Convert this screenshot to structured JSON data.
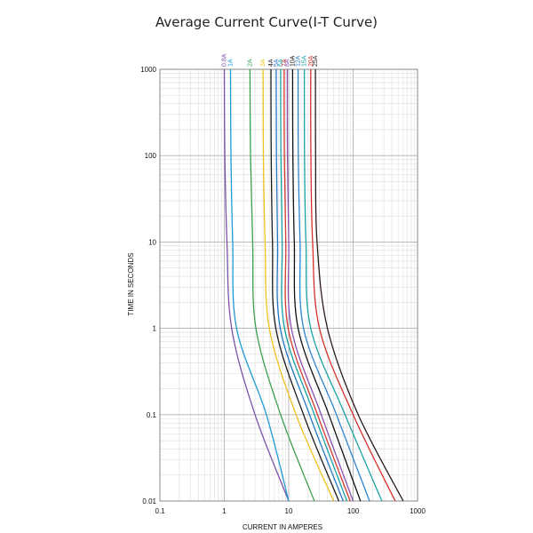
{
  "chart_data": {
    "type": "line",
    "title": "Average Current Curve(I-T Curve)",
    "xlabel": "CURRENT IN AMPERES",
    "ylabel": "TIME IN SECONDS",
    "x_scale": "log",
    "y_scale": "log",
    "xlim": [
      0.1,
      1000
    ],
    "ylim": [
      0.01,
      1000
    ],
    "x_ticks": [
      "0.1",
      "1",
      "10",
      "100",
      "1000"
    ],
    "y_ticks": [
      "0.01",
      "0.1",
      "1",
      "10",
      "100",
      "1000"
    ],
    "grid": true,
    "legend": "top, rotated labels above each curve",
    "series": [
      {
        "name": "0.8A",
        "color": "#7b52a8",
        "points": [
          [
            1.0,
            1000
          ],
          [
            1.02,
            100
          ],
          [
            1.1,
            10
          ],
          [
            1.3,
            1
          ],
          [
            3.0,
            0.1
          ],
          [
            10.0,
            0.01
          ]
        ]
      },
      {
        "name": "1A",
        "color": "#1f9ad6",
        "points": [
          [
            1.25,
            1000
          ],
          [
            1.27,
            100
          ],
          [
            1.35,
            10
          ],
          [
            1.55,
            1
          ],
          [
            4.5,
            0.1
          ],
          [
            10.0,
            0.01
          ]
        ]
      },
      {
        "name": "2A",
        "color": "#3aa050",
        "points": [
          [
            2.5,
            1000
          ],
          [
            2.55,
            100
          ],
          [
            2.75,
            10
          ],
          [
            3.1,
            1
          ],
          [
            7.5,
            0.1
          ],
          [
            25.0,
            0.01
          ]
        ]
      },
      {
        "name": "3A",
        "color": "#f0c21c",
        "points": [
          [
            4.0,
            1000
          ],
          [
            4.05,
            100
          ],
          [
            4.3,
            10
          ],
          [
            5.0,
            1
          ],
          [
            13.0,
            0.1
          ],
          [
            50.0,
            0.01
          ]
        ]
      },
      {
        "name": "4A",
        "color": "#1a1a1a",
        "points": [
          [
            5.3,
            1000
          ],
          [
            5.35,
            100
          ],
          [
            5.6,
            10
          ],
          [
            6.3,
            1
          ],
          [
            17.0,
            0.1
          ],
          [
            60.0,
            0.01
          ]
        ]
      },
      {
        "name": "5A",
        "color": "#2277c8",
        "points": [
          [
            6.4,
            1000
          ],
          [
            6.45,
            100
          ],
          [
            6.7,
            10
          ],
          [
            7.4,
            1
          ],
          [
            21.0,
            0.1
          ],
          [
            70.0,
            0.01
          ]
        ]
      },
      {
        "name": "6A",
        "color": "#17a3a3",
        "points": [
          [
            7.5,
            1000
          ],
          [
            7.55,
            100
          ],
          [
            7.9,
            10
          ],
          [
            8.6,
            1
          ],
          [
            25.0,
            0.1
          ],
          [
            80.0,
            0.01
          ]
        ]
      },
      {
        "name": "7A",
        "color": "#d23a2e",
        "points": [
          [
            8.5,
            1000
          ],
          [
            8.55,
            100
          ],
          [
            9.0,
            10
          ],
          [
            9.8,
            1
          ],
          [
            28.0,
            0.1
          ],
          [
            90.0,
            0.01
          ]
        ]
      },
      {
        "name": "8A",
        "color": "#8a4fb0",
        "points": [
          [
            9.5,
            1000
          ],
          [
            9.55,
            100
          ],
          [
            10.0,
            10
          ],
          [
            11.0,
            1
          ],
          [
            32.0,
            0.1
          ],
          [
            100.0,
            0.01
          ]
        ]
      },
      {
        "name": "10A",
        "color": "#111111",
        "points": [
          [
            11.5,
            1000
          ],
          [
            11.6,
            100
          ],
          [
            12.2,
            10
          ],
          [
            14.0,
            1
          ],
          [
            42.0,
            0.1
          ],
          [
            130.0,
            0.01
          ]
        ]
      },
      {
        "name": "12A",
        "color": "#2e84cf",
        "points": [
          [
            14.0,
            1000
          ],
          [
            14.1,
            100
          ],
          [
            15.0,
            10
          ],
          [
            17.0,
            1
          ],
          [
            55.0,
            0.1
          ],
          [
            180.0,
            0.01
          ]
        ]
      },
      {
        "name": "15A",
        "color": "#1aa3a3",
        "points": [
          [
            17.5,
            1000
          ],
          [
            17.6,
            100
          ],
          [
            18.5,
            10
          ],
          [
            22.0,
            1
          ],
          [
            75.0,
            0.1
          ],
          [
            280.0,
            0.01
          ]
        ]
      },
      {
        "name": "20A",
        "color": "#d6302a",
        "points": [
          [
            22.0,
            1000
          ],
          [
            22.1,
            100
          ],
          [
            23.5,
            10
          ],
          [
            30.0,
            1
          ],
          [
            100.0,
            0.1
          ],
          [
            450.0,
            0.01
          ]
        ]
      },
      {
        "name": "25A",
        "color": "#2b1a1a",
        "points": [
          [
            26.0,
            1000
          ],
          [
            26.2,
            100
          ],
          [
            27.5,
            10
          ],
          [
            40.0,
            1
          ],
          [
            120.0,
            0.1
          ],
          [
            600.0,
            0.01
          ]
        ]
      }
    ]
  }
}
